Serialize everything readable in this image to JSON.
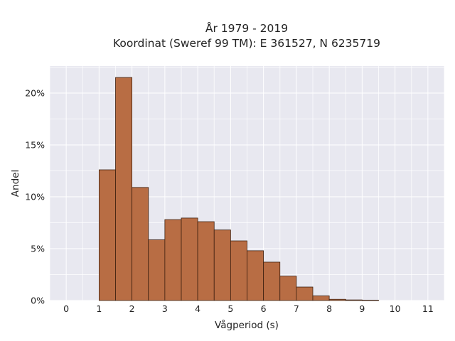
{
  "chart_data": {
    "type": "bar",
    "title": [
      "År 1979 - 2019",
      "Koordinat (Sweref 99 TM): E 361527, N 6235719"
    ],
    "xlabel": "Vågperiod (s)",
    "ylabel": "Andel",
    "xlim": [
      -0.5,
      11.5
    ],
    "ylim": [
      0,
      22.6
    ],
    "x_ticks": [
      0,
      1,
      2,
      3,
      4,
      5,
      6,
      7,
      8,
      9,
      10,
      11
    ],
    "y_ticks": [
      0,
      5,
      10,
      15,
      20
    ],
    "y_tick_labels": [
      "0%",
      "5%",
      "10%",
      "15%",
      "20%"
    ],
    "bin_width": 0.5,
    "bins": [
      {
        "start": 1.0,
        "value": 12.6
      },
      {
        "start": 1.5,
        "value": 21.5
      },
      {
        "start": 2.0,
        "value": 10.9
      },
      {
        "start": 2.5,
        "value": 5.85
      },
      {
        "start": 3.0,
        "value": 7.8
      },
      {
        "start": 3.5,
        "value": 7.95
      },
      {
        "start": 4.0,
        "value": 7.6
      },
      {
        "start": 4.5,
        "value": 6.8
      },
      {
        "start": 5.0,
        "value": 5.75
      },
      {
        "start": 5.5,
        "value": 4.8
      },
      {
        "start": 6.0,
        "value": 3.7
      },
      {
        "start": 6.5,
        "value": 2.35
      },
      {
        "start": 7.0,
        "value": 1.3
      },
      {
        "start": 7.5,
        "value": 0.45
      },
      {
        "start": 8.0,
        "value": 0.12
      },
      {
        "start": 8.5,
        "value": 0.06
      },
      {
        "start": 9.0,
        "value": 0.03
      }
    ],
    "bar_color": "#b86d44",
    "plot_background": "#e8e8f0",
    "grid": true
  }
}
